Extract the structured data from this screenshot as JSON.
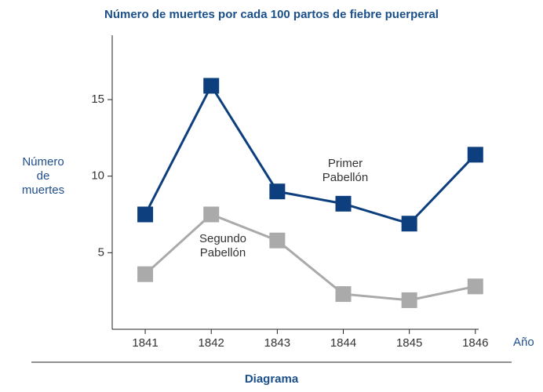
{
  "chart_data": {
    "type": "line",
    "title": "Número de muertes por cada 100 partos de fiebre puerperal",
    "caption": "Diagrama",
    "y_label": "Número de muertes",
    "x_label": "Año",
    "x": [
      1841,
      1842,
      1843,
      1844,
      1845,
      1846
    ],
    "series": [
      {
        "name": "Primer Pabellón",
        "color": "#0d3f7f",
        "values": [
          7.5,
          15.9,
          9.0,
          8.2,
          6.9,
          11.4
        ]
      },
      {
        "name": "Segundo Pabellón",
        "color": "#aaaaab",
        "values": [
          3.6,
          7.5,
          5.8,
          2.3,
          1.9,
          2.8
        ]
      }
    ],
    "xlim": [
      1840.5,
      1846.05
    ],
    "xticks": [
      1841,
      1842,
      1843,
      1844,
      1845,
      1846
    ],
    "ylim": [
      0,
      19.2
    ],
    "yticks": [
      5,
      10,
      15
    ],
    "grid": false
  }
}
